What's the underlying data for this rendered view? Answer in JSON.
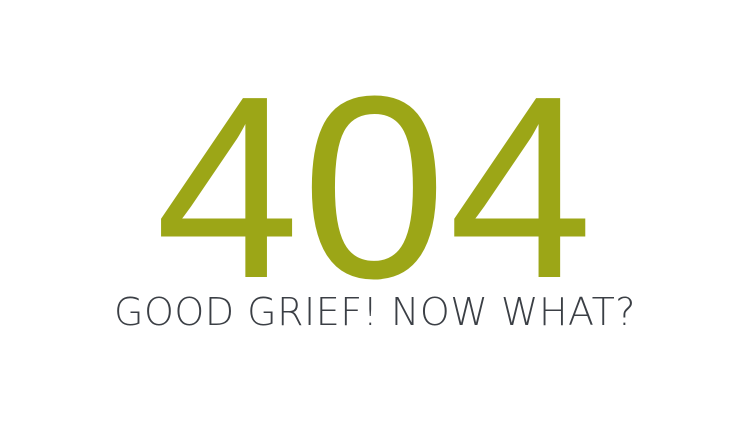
{
  "error": {
    "code": "404",
    "message": "GOOD GRIEF! NOW WHAT?"
  },
  "colors": {
    "background": "#ffffff",
    "code": "#9ca617",
    "message": "#3b3f45"
  }
}
